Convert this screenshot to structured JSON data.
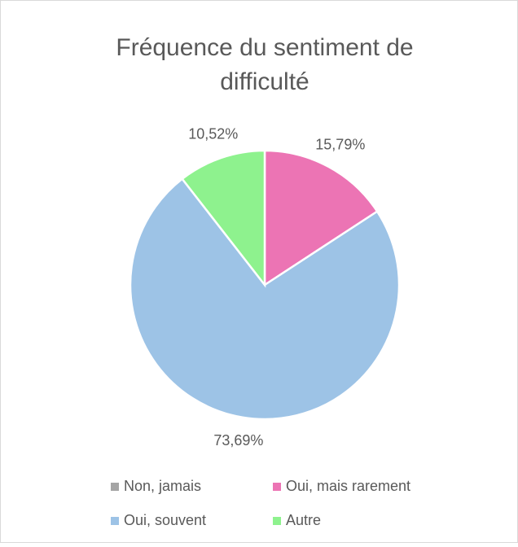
{
  "chart_data": {
    "type": "pie",
    "title": "Fréquence du sentiment de difficulté",
    "categories": [
      "Non, jamais",
      "Oui, mais rarement",
      "Oui, souvent",
      "Autre"
    ],
    "values": [
      0,
      15.79,
      73.69,
      10.52
    ],
    "value_labels": [
      null,
      "15,79%",
      "73,69%",
      "10,52%"
    ],
    "colors": [
      "#a5a5a5",
      "#ec74b4",
      "#9dc3e6",
      "#8ef28e"
    ],
    "legend": "bottom"
  }
}
